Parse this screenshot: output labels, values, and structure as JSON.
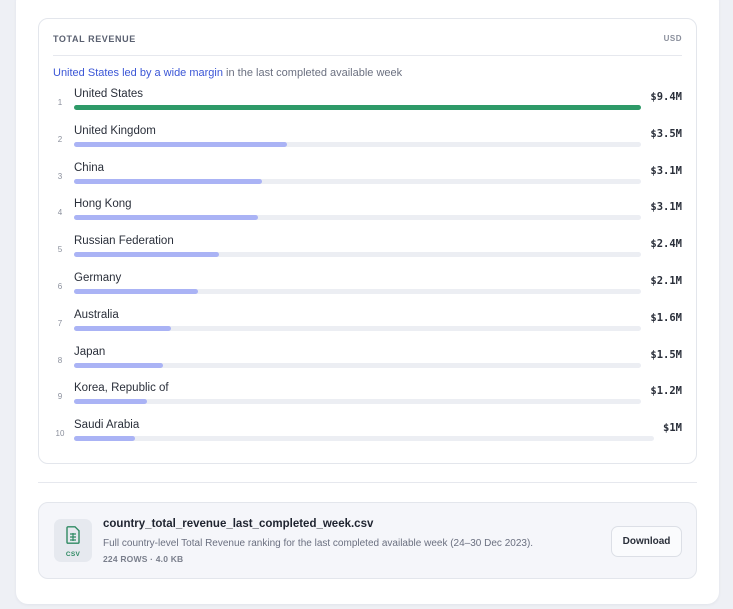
{
  "revenue": {
    "title": "TOTAL REVENUE",
    "unit": "USD",
    "summary_highlight": "United States led by a wide margin",
    "summary_rest": " in the last completed available week",
    "colors": {
      "leader": "#2e9a68",
      "other": "#aab3f5",
      "track": "#eceef3"
    },
    "rows": [
      {
        "rank": "1",
        "country": "United States",
        "value_label": "$9.4M",
        "share": 1.0,
        "leader": true
      },
      {
        "rank": "2",
        "country": "United Kingdom",
        "value_label": "$3.5M",
        "share": 0.376
      },
      {
        "rank": "3",
        "country": "China",
        "value_label": "$3.1M",
        "share": 0.332
      },
      {
        "rank": "4",
        "country": "Hong Kong",
        "value_label": "$3.1M",
        "share": 0.325
      },
      {
        "rank": "5",
        "country": "Russian Federation",
        "value_label": "$2.4M",
        "share": 0.256
      },
      {
        "rank": "6",
        "country": "Germany",
        "value_label": "$2.1M",
        "share": 0.219
      },
      {
        "rank": "7",
        "country": "Australia",
        "value_label": "$1.6M",
        "share": 0.171
      },
      {
        "rank": "8",
        "country": "Japan",
        "value_label": "$1.5M",
        "share": 0.157
      },
      {
        "rank": "9",
        "country": "Korea, Republic of",
        "value_label": "$1.2M",
        "share": 0.129
      },
      {
        "rank": "10",
        "country": "Saudi Arabia",
        "value_label": "$1M",
        "share": 0.108
      }
    ]
  },
  "file": {
    "icon": "csv-file-icon",
    "ext_label": "CSV",
    "name": "country_total_revenue_last_completed_week.csv",
    "description": "Full country-level Total Revenue ranking for the last completed available week (24–30 Dec 2023).",
    "meta": "224 ROWS · 4.0 KB",
    "download_label": "Download"
  }
}
